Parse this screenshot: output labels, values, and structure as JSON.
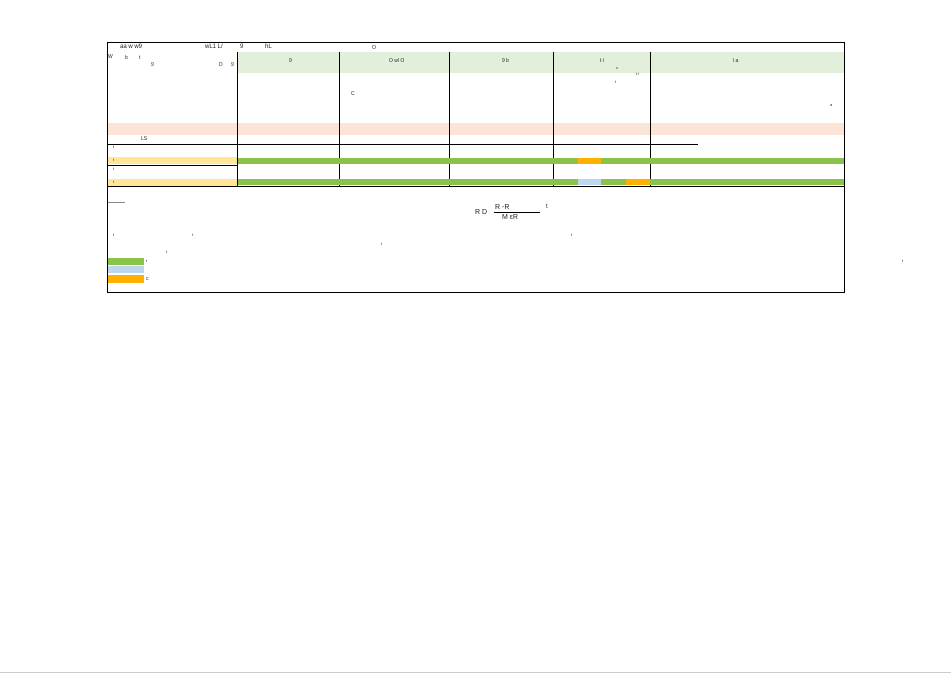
{
  "header": {
    "title": "aa w w9",
    "fields": [
      "wL1 L/",
      "9",
      "hL"
    ],
    "mark": "O"
  },
  "side": {
    "labels": [
      "W",
      "b",
      "t",
      "9",
      "D",
      "9"
    ]
  },
  "table": {
    "columns": [
      "9",
      "O wl O",
      "9 b",
      "t l",
      "l a"
    ],
    "notes": [
      "C",
      "v",
      "t",
      "t l",
      "a"
    ]
  },
  "section": {
    "label": "LS"
  },
  "rows": [
    "t",
    "t",
    "t",
    "t"
  ],
  "formula": {
    "lhs": "R D",
    "numerator": "R -R",
    "denominator": "M εR",
    "suffix": "t"
  },
  "notes": [
    "t",
    "t",
    "t",
    "t",
    "t",
    "t"
  ],
  "legend": [
    "t",
    "c"
  ]
}
